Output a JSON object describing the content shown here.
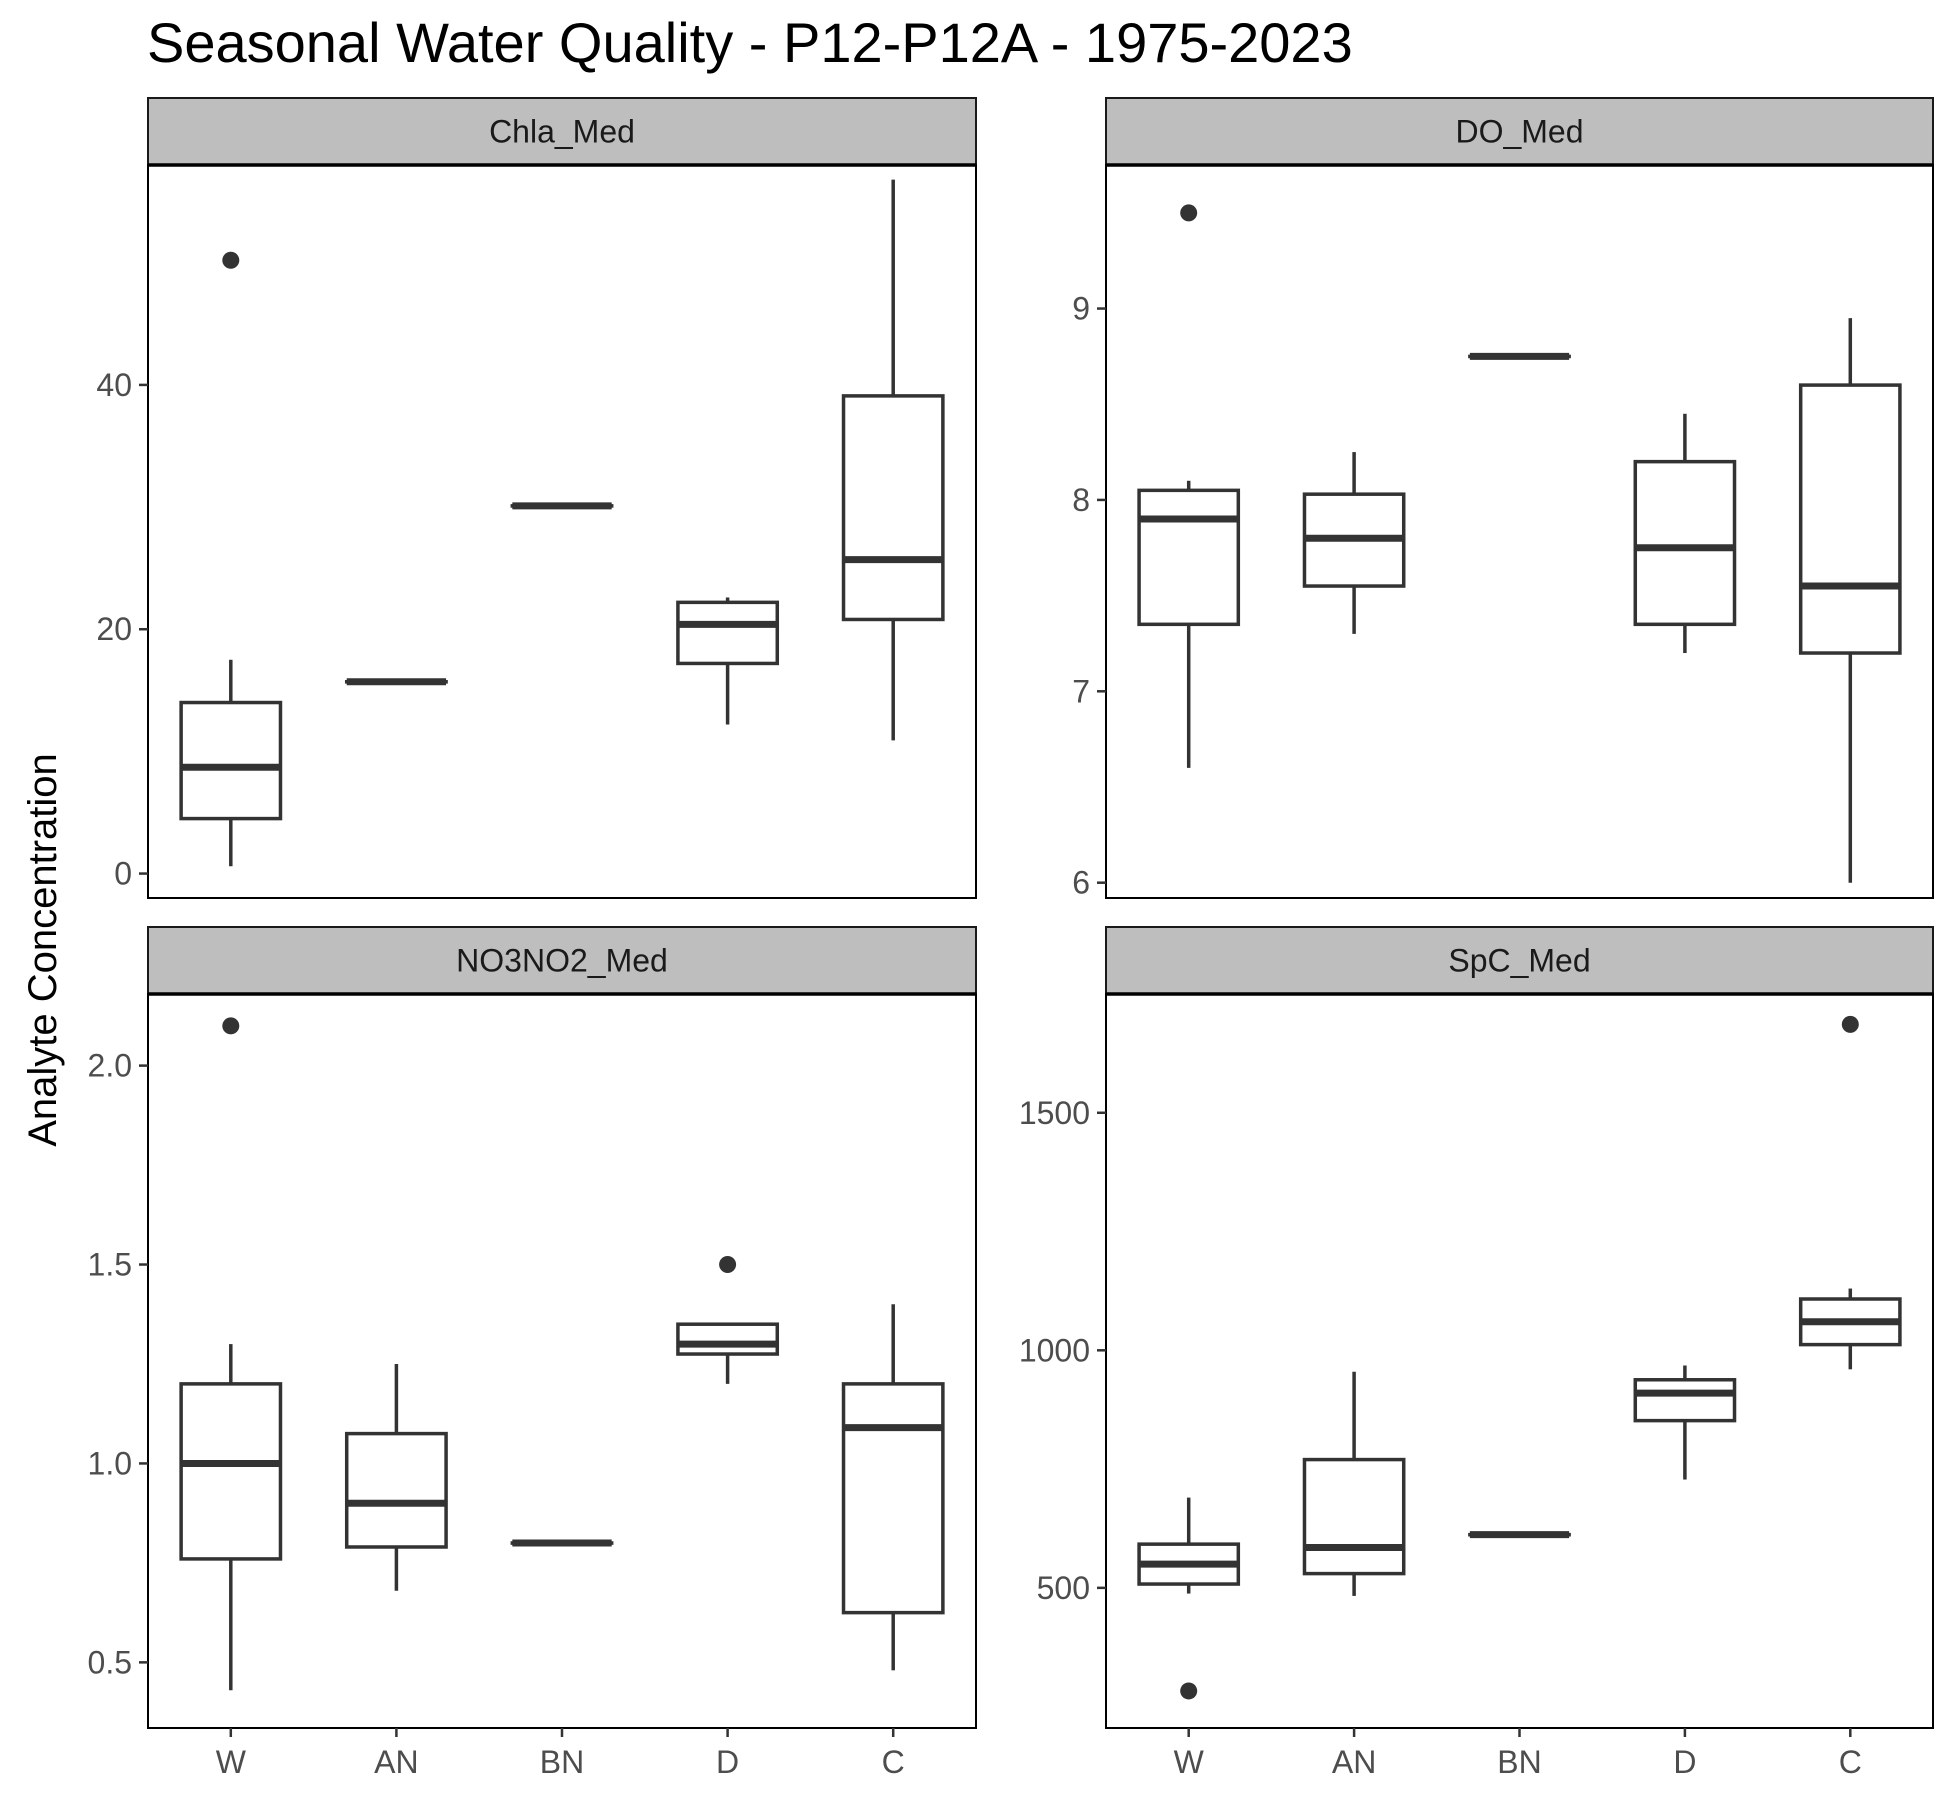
{
  "chart_data": {
    "type": "boxplot",
    "title": "Seasonal Water Quality - P12-P12A - 1975-2023",
    "ylabel": "Analyte Concentration",
    "xlabel": "",
    "categories": [
      "W",
      "AN",
      "BN",
      "D",
      "C"
    ],
    "grid": false,
    "colors": {
      "box": "#333333",
      "strip": "#bebebe",
      "frame": "#000000"
    },
    "panels": [
      {
        "name": "Chla_Med",
        "ylim": [
          -2,
          58
        ],
        "yticks": [
          0,
          20,
          40
        ],
        "yticklabels": [
          "0",
          "20",
          "40"
        ],
        "boxes": [
          {
            "category": "W",
            "min": 0.6,
            "q1": 4.5,
            "median": 8.7,
            "q3": 14.0,
            "max": 17.5,
            "outliers": [
              50.2
            ]
          },
          {
            "category": "AN",
            "min": 15.7,
            "q1": 15.7,
            "median": 15.7,
            "q3": 15.7,
            "max": 15.7,
            "outliers": []
          },
          {
            "category": "BN",
            "min": 30.1,
            "q1": 30.1,
            "median": 30.1,
            "q3": 30.1,
            "max": 30.1,
            "outliers": []
          },
          {
            "category": "D",
            "min": 12.2,
            "q1": 17.2,
            "median": 20.4,
            "q3": 22.2,
            "max": 22.6,
            "outliers": []
          },
          {
            "category": "C",
            "min": 10.9,
            "q1": 20.8,
            "median": 25.7,
            "q3": 39.1,
            "max": 56.8,
            "outliers": []
          }
        ]
      },
      {
        "name": "DO_Med",
        "ylim": [
          5.92,
          9.75
        ],
        "yticks": [
          6,
          7,
          8,
          9
        ],
        "yticklabels": [
          "6",
          "7",
          "8",
          "9"
        ],
        "boxes": [
          {
            "category": "W",
            "min": 6.6,
            "q1": 7.35,
            "median": 7.9,
            "q3": 8.05,
            "max": 8.1,
            "outliers": [
              9.5
            ]
          },
          {
            "category": "AN",
            "min": 7.3,
            "q1": 7.55,
            "median": 7.8,
            "q3": 8.03,
            "max": 8.25,
            "outliers": []
          },
          {
            "category": "BN",
            "min": 8.75,
            "q1": 8.75,
            "median": 8.75,
            "q3": 8.75,
            "max": 8.75,
            "outliers": []
          },
          {
            "category": "D",
            "min": 7.2,
            "q1": 7.35,
            "median": 7.75,
            "q3": 8.2,
            "max": 8.45,
            "outliers": []
          },
          {
            "category": "C",
            "min": 6.0,
            "q1": 7.2,
            "median": 7.55,
            "q3": 8.6,
            "max": 8.95,
            "outliers": []
          }
        ]
      },
      {
        "name": "NO3NO2_Med",
        "ylim": [
          0.335,
          2.18
        ],
        "yticks": [
          0.5,
          1.0,
          1.5,
          2.0
        ],
        "yticklabels": [
          "0.5",
          "1.0",
          "1.5",
          "2.0"
        ],
        "boxes": [
          {
            "category": "W",
            "min": 0.43,
            "q1": 0.76,
            "median": 1.0,
            "q3": 1.2,
            "max": 1.3,
            "outliers": [
              2.1
            ]
          },
          {
            "category": "AN",
            "min": 0.68,
            "q1": 0.79,
            "median": 0.9,
            "q3": 1.075,
            "max": 1.25,
            "outliers": []
          },
          {
            "category": "BN",
            "min": 0.8,
            "q1": 0.8,
            "median": 0.8,
            "q3": 0.8,
            "max": 0.8,
            "outliers": []
          },
          {
            "category": "D",
            "min": 1.2,
            "q1": 1.275,
            "median": 1.3,
            "q3": 1.35,
            "max": 1.35,
            "outliers": [
              1.5
            ]
          },
          {
            "category": "C",
            "min": 0.48,
            "q1": 0.625,
            "median": 1.09,
            "q3": 1.2,
            "max": 1.4,
            "outliers": []
          }
        ]
      },
      {
        "name": "SpC_Med",
        "ylim": [
          205,
          1750
        ],
        "yticks": [
          500,
          1000,
          1500
        ],
        "yticklabels": [
          "500",
          "1000",
          "1500"
        ],
        "boxes": [
          {
            "category": "W",
            "min": 488,
            "q1": 508,
            "median": 550,
            "q3": 592,
            "max": 690,
            "outliers": [
              283
            ]
          },
          {
            "category": "AN",
            "min": 483,
            "q1": 530,
            "median": 585,
            "q3": 770,
            "max": 955,
            "outliers": []
          },
          {
            "category": "BN",
            "min": 612,
            "q1": 612,
            "median": 612,
            "q3": 612,
            "max": 612,
            "outliers": []
          },
          {
            "category": "D",
            "min": 728,
            "q1": 852,
            "median": 910,
            "q3": 938,
            "max": 968,
            "outliers": []
          },
          {
            "category": "C",
            "min": 960,
            "q1": 1012,
            "median": 1060,
            "q3": 1108,
            "max": 1130,
            "outliers": [
              1686
            ]
          }
        ]
      }
    ]
  }
}
